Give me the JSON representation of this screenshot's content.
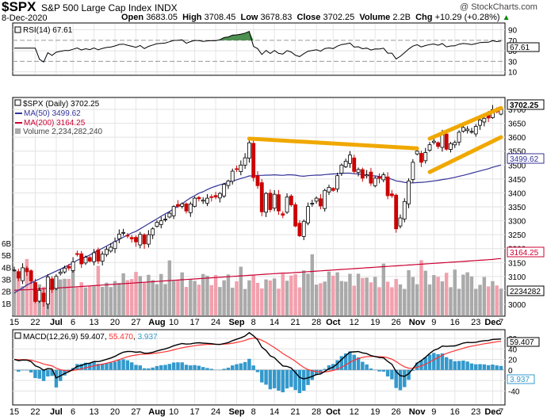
{
  "header": {
    "symbol": "$SPX",
    "name": "S&P 500 Large Cap Index",
    "exchange": "INDX",
    "watermark": "@ StockCharts.com",
    "date": "8-Dec-2020",
    "open_label": "Open",
    "open": "3683.05",
    "high_label": "High",
    "high": "3708.45",
    "low_label": "Low",
    "low": "3678.83",
    "close_label": "Close",
    "close": "3702.25",
    "volume_label": "Volume",
    "volume": "2.2B",
    "chg_label": "Chg",
    "chg": "+10.29 (+0.28%)",
    "chg_arrow": "▲"
  },
  "rsi_panel": {
    "legend": "RSI(14) 67.61",
    "current_label": "67.61",
    "levels": [
      90,
      70,
      50,
      30,
      10
    ],
    "colors": {
      "line": "#000000",
      "overbought_fill": "#2e7d32",
      "oversold_fill": "#6fa8dc"
    }
  },
  "price_panel": {
    "legend_main": "$SPX (Daily) 3702.25",
    "legend_ma50": "MA(50) 3499.62",
    "legend_ma200": "MA(200) 3164.25",
    "legend_volume": "Volume 2,234,282,240",
    "current_price_label": "3702.25",
    "ma50_label": "3499.62",
    "ma200_label": "3164.25",
    "volume_label": "2234282",
    "colors": {
      "ma50": "#333399",
      "ma200": "#cc0033",
      "up": "#000000",
      "down": "#cc0000",
      "vol_up": "#aaaaaa",
      "vol_down": "#f2a0ad",
      "trendline": "#f0a800"
    }
  },
  "macd_panel": {
    "legend_prefix": "MACD(12,26,9)",
    "macd_value": "59.407",
    "signal_value": "55.470",
    "hist_value": "3.937",
    "current_macd_label": "59.407",
    "current_hist_label": "3.937",
    "colors": {
      "macd": "#000000",
      "signal": "#ff3333",
      "hist": "#3399cc"
    }
  },
  "chart_data": {
    "type": "candlestick",
    "x_axis_ticks": [
      "15",
      "22",
      "Jul",
      "6",
      "13",
      "20",
      "27",
      "Aug",
      "10",
      "17",
      "24",
      "Sep",
      "8",
      "14",
      "21",
      "28",
      "Oct",
      "12",
      "19",
      "26",
      "Nov",
      "9",
      "16",
      "23",
      "Dec",
      "7"
    ],
    "y_axis_price_ticks": [
      3700,
      3650,
      3600,
      3550,
      3500,
      3450,
      3400,
      3350,
      3300,
      3250,
      3200,
      3150,
      3100,
      3050,
      3000
    ],
    "y_axis_volume_ticks": [
      "6B",
      "5B",
      "4B",
      "3B",
      "2B",
      "1B"
    ],
    "macd_axis_ticks": [
      60,
      40,
      20,
      0,
      -20,
      -40
    ],
    "rsi_axis_ticks": [
      90,
      70,
      50,
      30,
      10
    ],
    "price_ylim": [
      2960,
      3740
    ],
    "macd_ylim": [
      -65,
      75
    ],
    "close_series": [
      3123,
      3094,
      3131,
      3117,
      3084,
      3010,
      3050,
      3009,
      3098,
      3053,
      3100,
      3115,
      3130,
      3130,
      3152,
      3179,
      3145,
      3169,
      3155,
      3185,
      3155,
      3180,
      3197,
      3205,
      3225,
      3252,
      3258,
      3246,
      3235,
      3224,
      3251,
      3217,
      3250,
      3271,
      3294,
      3300,
      3306,
      3327,
      3351,
      3352,
      3361,
      3335,
      3360,
      3381,
      3379,
      3374,
      3381,
      3386,
      3385,
      3398,
      3431,
      3443,
      3478,
      3485,
      3500,
      3526,
      3580,
      3455,
      3426,
      3332,
      3398,
      3340,
      3395,
      3335,
      3320,
      3385,
      3357,
      3281,
      3246,
      3298,
      3351,
      3363,
      3381,
      3353,
      3409,
      3420,
      3409,
      3462,
      3500,
      3514,
      3536,
      3477,
      3484,
      3453,
      3465,
      3435,
      3453,
      3452,
      3465,
      3390,
      3390,
      3271,
      3310,
      3369,
      3443,
      3510,
      3550,
      3510,
      3545,
      3573,
      3586,
      3567,
      3609,
      3557,
      3577,
      3581,
      3618,
      3635,
      3629,
      3621,
      3639,
      3662,
      3668,
      3669,
      3699,
      3691,
      3702
    ],
    "ma50": [
      3040,
      3050,
      3059,
      3069,
      3077,
      3084,
      3091,
      3098,
      3105,
      3112,
      3119,
      3126,
      3134,
      3141,
      3149,
      3158,
      3165,
      3170,
      3177,
      3186,
      3194,
      3201,
      3209,
      3217,
      3225,
      3233,
      3241,
      3249,
      3256,
      3262,
      3271,
      3280,
      3289,
      3298,
      3307,
      3316,
      3325,
      3333,
      3343,
      3352,
      3361,
      3372,
      3382,
      3390,
      3399,
      3404,
      3412,
      3419,
      3424,
      3429,
      3433,
      3438,
      3443,
      3447,
      3452,
      3456,
      3461,
      3461,
      3463,
      3463,
      3464,
      3464,
      3465,
      3464,
      3463,
      3465,
      3465,
      3464,
      3461,
      3460,
      3462,
      3463,
      3464,
      3464,
      3466,
      3467,
      3468,
      3469,
      3470,
      3471,
      3471,
      3469,
      3468,
      3466,
      3464,
      3462,
      3461,
      3459,
      3457,
      3453,
      3449,
      3443,
      3441,
      3438,
      3436,
      3436,
      3437,
      3438,
      3439,
      3441,
      3443,
      3445,
      3448,
      3450,
      3453,
      3456,
      3460,
      3463,
      3467,
      3471,
      3475,
      3479,
      3483,
      3487,
      3492,
      3496,
      3500
    ],
    "ma200": [
      3050,
      3051,
      3052,
      3052,
      3053,
      3054,
      3055,
      3056,
      3057,
      3057,
      3058,
      3059,
      3060,
      3061,
      3062,
      3063,
      3064,
      3065,
      3066,
      3067,
      3068,
      3069,
      3070,
      3071,
      3072,
      3073,
      3074,
      3075,
      3076,
      3077,
      3078,
      3079,
      3080,
      3081,
      3082,
      3083,
      3084,
      3085,
      3086,
      3087,
      3088,
      3089,
      3090,
      3091,
      3092,
      3093,
      3094,
      3095,
      3096,
      3097,
      3098,
      3099,
      3100,
      3101,
      3102,
      3103,
      3104,
      3105,
      3106,
      3107,
      3108,
      3109,
      3110,
      3111,
      3112,
      3112,
      3113,
      3114,
      3115,
      3116,
      3117,
      3118,
      3119,
      3120,
      3121,
      3122,
      3123,
      3124,
      3125,
      3126,
      3127,
      3128,
      3129,
      3130,
      3131,
      3132,
      3133,
      3134,
      3135,
      3136,
      3137,
      3138,
      3139,
      3140,
      3141,
      3142,
      3143,
      3144,
      3145,
      3146,
      3147,
      3148,
      3149,
      3150,
      3151,
      3152,
      3153,
      3154,
      3155,
      3156,
      3157,
      3158,
      3159,
      3160,
      3161,
      3163,
      3164
    ],
    "trendlines": [
      {
        "from": [
          56,
          3595
        ],
        "to": [
          96,
          3560
        ]
      },
      {
        "from": [
          99,
          3595
        ],
        "to": [
          116,
          3705
        ]
      },
      {
        "from": [
          99,
          3475
        ],
        "to": [
          116,
          3600
        ]
      }
    ],
    "volume_scale_max_billion": 6.6,
    "last_values": {
      "close": 3702.25,
      "ma50": 3499.62,
      "ma200": 3164.25,
      "rsi": 67.61,
      "macd": 59.407,
      "signal": 55.47,
      "hist": 3.937,
      "volume": 2234282240
    }
  }
}
